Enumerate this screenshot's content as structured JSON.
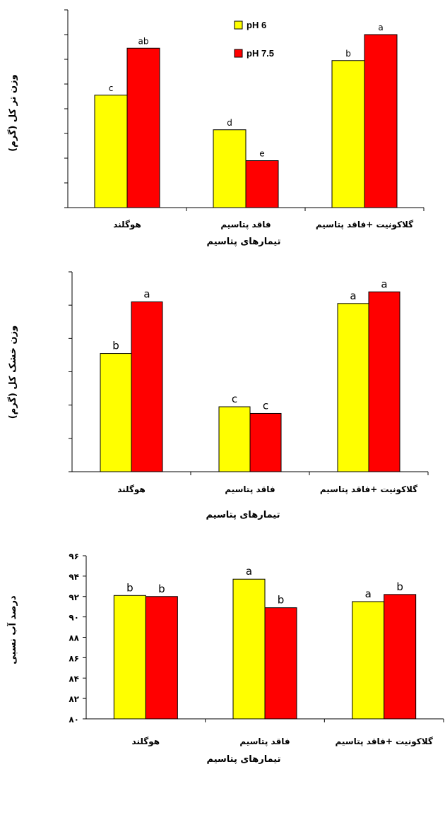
{
  "colors": {
    "series1": "#ffff00",
    "series2": "#ff0000"
  },
  "chart_data": [
    {
      "type": "bar",
      "categories": [
        "هوگلند",
        "فاقد پتاسیم",
        "گلاکونیت +فاقد پتاسیم"
      ],
      "series": [
        {
          "name": "pH 6",
          "values": [
            4.55,
            3.15,
            5.95
          ],
          "letters": [
            "c",
            "d",
            "b"
          ]
        },
        {
          "name": "pH 7.5",
          "values": [
            6.45,
            1.9,
            7.0
          ],
          "letters": [
            "ab",
            "e",
            "a"
          ]
        }
      ],
      "ylim": [
        0,
        8
      ],
      "ylabel": "وزن تر کل (گرم)",
      "xlabel": "تیمارهای پتاسیم",
      "yticks_labeled": false,
      "legend": {
        "position": "top-center",
        "entries": [
          "pH 6",
          "pH 7.5"
        ]
      }
    },
    {
      "type": "bar",
      "categories": [
        "هوگلند",
        "فاقد پتاسیم",
        "گلاکونیت +فاقد پتاسیم"
      ],
      "series": [
        {
          "name": "pH 6",
          "values": [
            3.55,
            1.95,
            5.05
          ],
          "letters": [
            "b",
            "c",
            "a"
          ]
        },
        {
          "name": "pH 7.5",
          "values": [
            5.1,
            1.75,
            5.4
          ],
          "letters": [
            "a",
            "c",
            "a"
          ]
        }
      ],
      "ylim": [
        0,
        6
      ],
      "ylabel": "وزن خشک کل (گرم)",
      "xlabel": "تیمارهای پتاسیم",
      "yticks_labeled": false
    },
    {
      "type": "bar",
      "categories": [
        "هوگلند",
        "فاقد پتاسیم",
        "گلاکونیت +فاقد پتاسیم"
      ],
      "series": [
        {
          "name": "pH 6",
          "values": [
            92.1,
            93.7,
            91.5
          ],
          "letters": [
            "b",
            "a",
            "a"
          ]
        },
        {
          "name": "pH 7.5",
          "values": [
            92.0,
            90.9,
            92.2
          ],
          "letters": [
            "b",
            "b",
            "b"
          ]
        }
      ],
      "ylim": [
        80,
        96
      ],
      "yticks": [
        "۸۰",
        "۸۲",
        "۸۴",
        "۸۶",
        "۸۸",
        "۹۰",
        "۹۲",
        "۹۴",
        "۹۶"
      ],
      "ylabel": "درصد آب نسبی",
      "xlabel": "تیمارهای پتاسیم",
      "yticks_labeled": true
    }
  ]
}
